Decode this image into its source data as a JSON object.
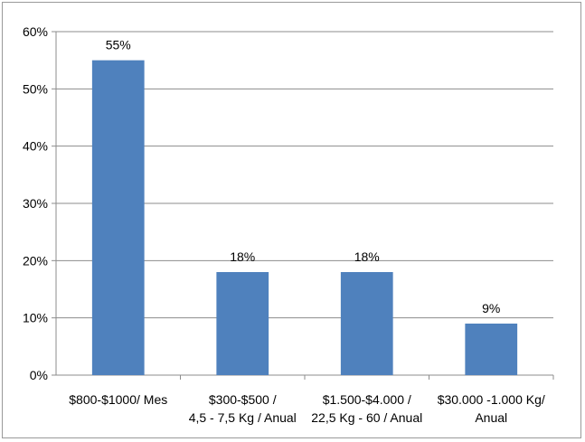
{
  "chart_data": {
    "type": "bar",
    "categories": [
      [
        "$800-$1000/ Mes"
      ],
      [
        "$300-$500 /",
        "4,5 - 7,5 Kg / Anual"
      ],
      [
        "$1.500-$4.000 /",
        "22,5 Kg - 60 / Anual"
      ],
      [
        "$30.000 -1.000 Kg/",
        "Anual"
      ]
    ],
    "values": [
      55,
      18,
      18,
      9
    ],
    "value_labels": [
      "55%",
      "18%",
      "18%",
      "9%"
    ],
    "y_ticks": [
      0,
      10,
      20,
      30,
      40,
      50,
      60
    ],
    "y_tick_labels": [
      "0%",
      "10%",
      "20%",
      "30%",
      "40%",
      "50%",
      "60%"
    ],
    "ylim": [
      0,
      60
    ],
    "grid": true,
    "bar_color": "#4f81bd",
    "grid_color": "#8c8c8c"
  }
}
